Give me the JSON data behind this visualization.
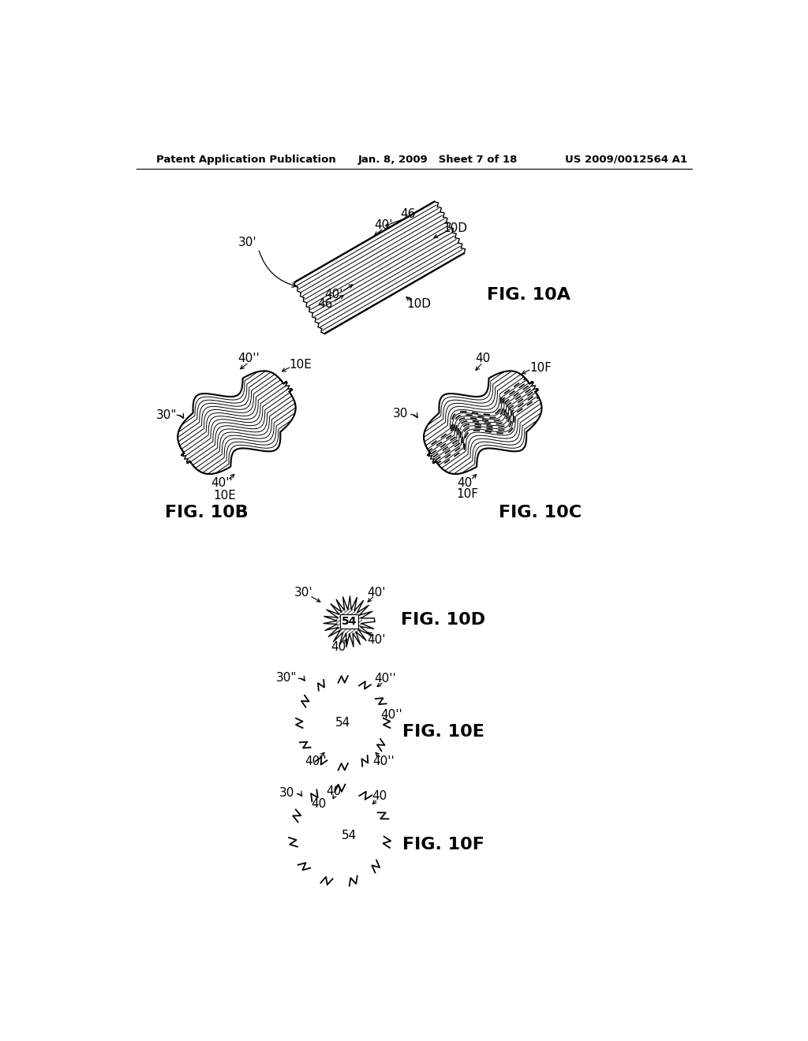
{
  "bg_color": "#ffffff",
  "line_color": "#000000",
  "header_left": "Patent Application Publication",
  "header_mid": "Jan. 8, 2009   Sheet 7 of 18",
  "header_right": "US 2009/0012564 A1"
}
